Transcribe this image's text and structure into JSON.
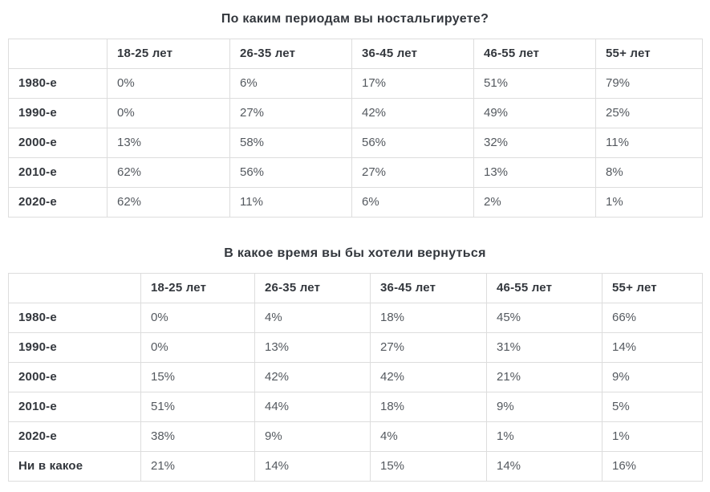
{
  "colors": {
    "background": "#ffffff",
    "border": "#dddddd",
    "title_text": "#33373d",
    "label_text": "#33373d",
    "value_text": "#54595f"
  },
  "chart_data": [
    {
      "type": "table",
      "title": "По каким периодам вы ностальгируете?",
      "columns": [
        "",
        "18-25 лет",
        "26-35 лет",
        "36-45 лет",
        "46-55 лет",
        "55+ лет"
      ],
      "rows": [
        {
          "label": "1980-е",
          "values": [
            "0%",
            "6%",
            "17%",
            "51%",
            "79%"
          ]
        },
        {
          "label": "1990-е",
          "values": [
            "0%",
            "27%",
            "42%",
            "49%",
            "25%"
          ]
        },
        {
          "label": "2000-е",
          "values": [
            "13%",
            "58%",
            "56%",
            "32%",
            "11%"
          ]
        },
        {
          "label": "2010-е",
          "values": [
            "62%",
            "56%",
            "27%",
            "13%",
            "8%"
          ]
        },
        {
          "label": "2020-е",
          "values": [
            "62%",
            "11%",
            "6%",
            "2%",
            "1%"
          ]
        }
      ]
    },
    {
      "type": "table",
      "title": "В какое время вы бы хотели вернуться",
      "columns": [
        "",
        "18-25 лет",
        "26-35 лет",
        "36-45 лет",
        "46-55 лет",
        "55+ лет"
      ],
      "rows": [
        {
          "label": "1980-е",
          "values": [
            "0%",
            "4%",
            "18%",
            "45%",
            "66%"
          ]
        },
        {
          "label": "1990-е",
          "values": [
            "0%",
            "13%",
            "27%",
            "31%",
            "14%"
          ]
        },
        {
          "label": "2000-е",
          "values": [
            "15%",
            "42%",
            "42%",
            "21%",
            "9%"
          ]
        },
        {
          "label": "2010-е",
          "values": [
            "51%",
            "44%",
            "18%",
            "9%",
            "5%"
          ]
        },
        {
          "label": "2020-е",
          "values": [
            "38%",
            "9%",
            "4%",
            "1%",
            "1%"
          ]
        },
        {
          "label": "Ни в какое",
          "values": [
            "21%",
            "14%",
            "15%",
            "14%",
            "16%"
          ]
        }
      ]
    }
  ]
}
